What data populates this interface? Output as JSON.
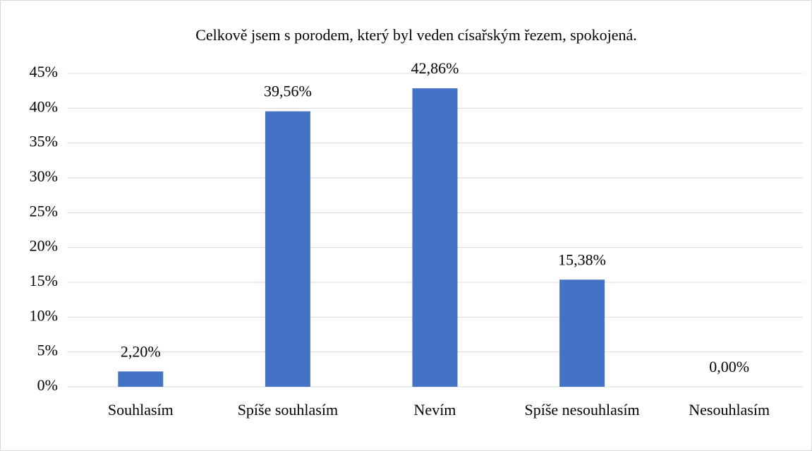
{
  "chart_data": {
    "type": "bar",
    "title": "Celkově jsem s porodem, který byl veden císařským řezem, spokojená.",
    "categories": [
      "Souhlasím",
      "Spíše souhlasím",
      "Nevím",
      "Spíše nesouhlasím",
      "Nesouhlasím"
    ],
    "values": [
      2.2,
      39.56,
      42.86,
      15.38,
      0
    ],
    "value_labels": [
      "2,20%",
      "39,56%",
      "42,86%",
      "15,38%",
      "0,00%"
    ],
    "color": "#4472c4",
    "ylim": [
      0,
      45
    ],
    "yticks": [
      {
        "value": 0,
        "label": "0%"
      },
      {
        "value": 5,
        "label": "5%"
      },
      {
        "value": 10,
        "label": "10%"
      },
      {
        "value": 15,
        "label": "15%"
      },
      {
        "value": 20,
        "label": "20%"
      },
      {
        "value": 25,
        "label": "25%"
      },
      {
        "value": 30,
        "label": "30%"
      },
      {
        "value": 35,
        "label": "35%"
      },
      {
        "value": 40,
        "label": "40%"
      },
      {
        "value": 45,
        "label": "45%"
      }
    ],
    "grid": true
  }
}
